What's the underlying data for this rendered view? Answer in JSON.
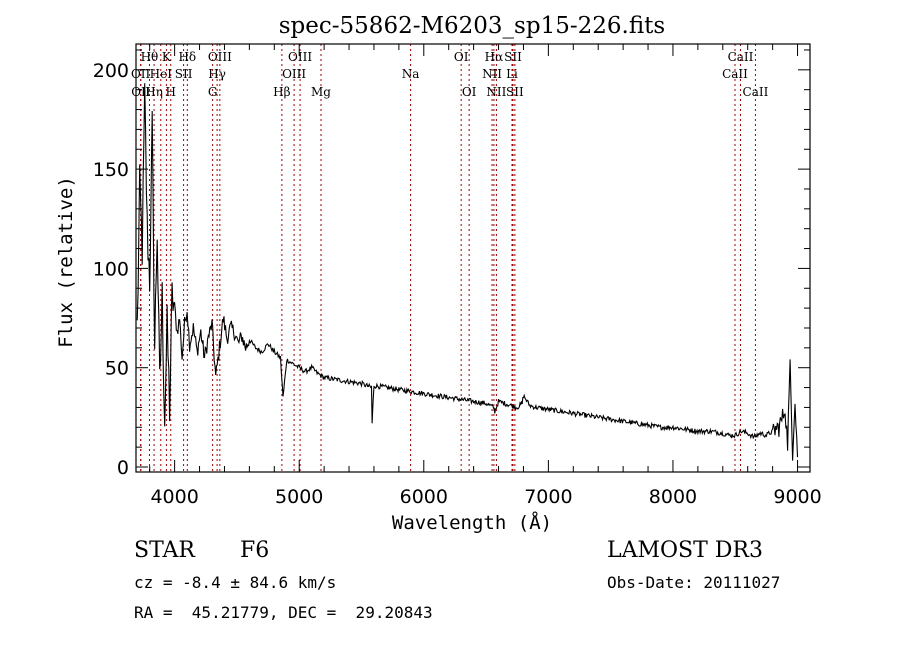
{
  "chart_data": {
    "type": "line",
    "title": "spec-55862-M6203_sp15-226.fits",
    "xlabel": "Wavelength (Å)",
    "ylabel": "Flux (relative)",
    "xlim": [
      3690,
      9100
    ],
    "ylim": [
      0,
      213
    ],
    "xticks": [
      4000,
      5000,
      6000,
      7000,
      8000,
      9000
    ],
    "yticks": [
      0,
      50,
      100,
      150,
      200
    ],
    "x_minor_step": 200,
    "y_minor_step": 10,
    "grid": false,
    "line_color": "#000000",
    "marker_color": "#a00000",
    "spectral_lines": [
      {
        "label": "OII",
        "wavelength": 3727,
        "row": 1
      },
      {
        "label": "OII",
        "wavelength": 3729,
        "row": 2
      },
      {
        "label": "Hθ",
        "wavelength": 3798,
        "row": 0
      },
      {
        "label": "Hη",
        "wavelength": 3835,
        "row": 2
      },
      {
        "label": "HeI",
        "wavelength": 3889,
        "row": 1
      },
      {
        "label": "K",
        "wavelength": 3934,
        "row": 0
      },
      {
        "label": "H",
        "wavelength": 3969,
        "row": 2
      },
      {
        "label": "SII",
        "wavelength": 4072,
        "row": 1
      },
      {
        "label": "Hδ",
        "wavelength": 4102,
        "row": 0
      },
      {
        "label": "G",
        "wavelength": 4305,
        "row": 2
      },
      {
        "label": "Hγ",
        "wavelength": 4341,
        "row": 1
      },
      {
        "label": "OIII",
        "wavelength": 4363,
        "row": 0
      },
      {
        "label": "Hβ",
        "wavelength": 4861,
        "row": 2
      },
      {
        "label": "OIII",
        "wavelength": 4959,
        "row": 1
      },
      {
        "label": "OIII",
        "wavelength": 5007,
        "row": 0
      },
      {
        "label": "Mg",
        "wavelength": 5175,
        "row": 2
      },
      {
        "label": "Na",
        "wavelength": 5894,
        "row": 1
      },
      {
        "label": "OI",
        "wavelength": 6300,
        "row": 0
      },
      {
        "label": "OI",
        "wavelength": 6364,
        "row": 2
      },
      {
        "label": "NII",
        "wavelength": 6548,
        "row": 1
      },
      {
        "label": "Hα",
        "wavelength": 6563,
        "row": 0
      },
      {
        "label": "NII",
        "wavelength": 6583,
        "row": 2
      },
      {
        "label": "Li",
        "wavelength": 6708,
        "row": 1
      },
      {
        "label": "SII",
        "wavelength": 6716,
        "row": 0
      },
      {
        "label": "SII",
        "wavelength": 6731,
        "row": 2
      },
      {
        "label": "CaII",
        "wavelength": 8498,
        "row": 1
      },
      {
        "label": "CaII",
        "wavelength": 8542,
        "row": 0
      },
      {
        "label": "CaII",
        "wavelength": 8662,
        "row": 2
      }
    ],
    "series": [
      {
        "name": "flux",
        "x": [
          3700,
          3720,
          3740,
          3760,
          3780,
          3800,
          3820,
          3840,
          3860,
          3880,
          3900,
          3920,
          3940,
          3960,
          3980,
          4000,
          4020,
          4040,
          4060,
          4080,
          4100,
          4120,
          4150,
          4180,
          4210,
          4240,
          4270,
          4300,
          4330,
          4360,
          4390,
          4420,
          4450,
          4480,
          4510,
          4540,
          4570,
          4600,
          4650,
          4700,
          4750,
          4800,
          4850,
          4870,
          4900,
          4950,
          5000,
          5050,
          5100,
          5150,
          5200,
          5300,
          5400,
          5500,
          5580,
          5585,
          5600,
          5700,
          5800,
          5900,
          6000,
          6100,
          6200,
          6300,
          6400,
          6500,
          6560,
          6570,
          6600,
          6700,
          6750,
          6790,
          6800,
          6850,
          6900,
          7000,
          7100,
          7200,
          7300,
          7400,
          7500,
          7600,
          7700,
          7800,
          7900,
          8000,
          8100,
          8200,
          8300,
          8400,
          8450,
          8500,
          8550,
          8600,
          8650,
          8700,
          8750,
          8800,
          8850,
          8880,
          8900,
          8920,
          8940,
          8960,
          8980,
          9000
        ],
        "y": [
          70,
          140,
          110,
          185,
          120,
          95,
          170,
          60,
          120,
          40,
          85,
          25,
          70,
          30,
          85,
          80,
          68,
          75,
          55,
          72,
          80,
          62,
          70,
          58,
          68,
          55,
          65,
          72,
          45,
          60,
          75,
          65,
          70,
          68,
          62,
          66,
          60,
          64,
          60,
          58,
          62,
          58,
          55,
          35,
          54,
          52,
          50,
          48,
          50,
          47,
          45,
          44,
          43,
          42,
          40,
          22,
          41,
          40,
          39,
          38,
          37,
          36,
          35,
          34,
          33,
          32,
          30,
          28,
          33,
          31,
          30,
          32,
          36,
          31,
          30,
          29,
          28,
          27,
          26,
          25,
          24,
          23,
          22,
          21,
          20,
          20,
          19,
          18,
          18,
          17,
          16,
          16,
          18,
          17,
          15,
          17,
          16,
          18,
          20,
          25,
          30,
          12,
          50,
          8,
          35,
          5
        ]
      }
    ]
  },
  "info": {
    "object_class": "STAR",
    "subclass": "F6",
    "redshift_line": "cz = -8.4 ± 84.6 km/s",
    "coords_line": "RA =  45.21779, DEC =  29.20843",
    "survey": "LAMOST DR3",
    "obs_date_line": "Obs-Date: 20111027"
  }
}
